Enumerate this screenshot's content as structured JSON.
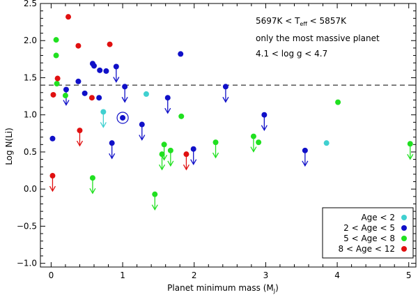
{
  "chart_data": {
    "type": "scatter",
    "xlabel_main": "Planet minimum mass (M",
    "xlabel_sub": "J",
    "xlabel_close": ")",
    "ylabel": "Log N(Li)",
    "xlim": [
      -0.15,
      5.1
    ],
    "ylim": [
      -1.05,
      2.5
    ],
    "xticks": [
      0,
      1,
      2,
      3,
      4,
      5
    ],
    "yticks": [
      -1.0,
      -0.5,
      0.0,
      0.5,
      1.0,
      1.5,
      2.0,
      2.5
    ],
    "ytick_labels": [
      "−1.0",
      "−0.5",
      "0.0",
      "0.5",
      "1.0",
      "1.5",
      "2.0",
      "2.5"
    ],
    "grid": false,
    "reference_line": {
      "y": 1.4,
      "style": "dashed"
    },
    "annotations": {
      "line1_a": "5697K < T",
      "line1_sub": "eff",
      "line1_b": " < 5857K",
      "line2": "only the most massive planet",
      "line3": "4.1 < log g < 4.7"
    },
    "legend_placement": "bottom-right",
    "highlighted_point": {
      "x": 1.0,
      "y": 0.96
    },
    "series": [
      {
        "name": "Age < 2",
        "color": "#40d0d0",
        "points": [
          {
            "x": 0.73,
            "y": 1.04,
            "upper_limit": true
          },
          {
            "x": 1.33,
            "y": 1.28,
            "upper_limit": false
          },
          {
            "x": 3.85,
            "y": 0.62,
            "upper_limit": false
          }
        ]
      },
      {
        "name": "2 < Age < 5",
        "color": "#1010c8",
        "points": [
          {
            "x": 0.02,
            "y": 0.68,
            "upper_limit": false
          },
          {
            "x": 0.21,
            "y": 1.34,
            "upper_limit": true
          },
          {
            "x": 0.38,
            "y": 1.45,
            "upper_limit": false
          },
          {
            "x": 0.47,
            "y": 1.29,
            "upper_limit": false
          },
          {
            "x": 0.58,
            "y": 1.69,
            "upper_limit": false
          },
          {
            "x": 0.6,
            "y": 1.66,
            "upper_limit": false
          },
          {
            "x": 0.67,
            "y": 1.23,
            "upper_limit": false
          },
          {
            "x": 0.68,
            "y": 1.6,
            "upper_limit": false
          },
          {
            "x": 0.77,
            "y": 1.59,
            "upper_limit": false
          },
          {
            "x": 0.85,
            "y": 0.62,
            "upper_limit": true
          },
          {
            "x": 0.91,
            "y": 1.65,
            "upper_limit": true
          },
          {
            "x": 1.0,
            "y": 0.96,
            "upper_limit": false
          },
          {
            "x": 1.03,
            "y": 1.38,
            "upper_limit": true
          },
          {
            "x": 1.27,
            "y": 0.87,
            "upper_limit": true
          },
          {
            "x": 1.63,
            "y": 1.23,
            "upper_limit": true
          },
          {
            "x": 1.81,
            "y": 1.82,
            "upper_limit": false
          },
          {
            "x": 1.99,
            "y": 0.54,
            "upper_limit": true
          },
          {
            "x": 2.44,
            "y": 1.38,
            "upper_limit": true
          },
          {
            "x": 2.98,
            "y": 1.0,
            "upper_limit": true
          },
          {
            "x": 3.55,
            "y": 0.52,
            "upper_limit": true
          }
        ]
      },
      {
        "name": "5 < Age < 8",
        "color": "#20e020",
        "points": [
          {
            "x": 0.07,
            "y": 2.01,
            "upper_limit": false
          },
          {
            "x": 0.07,
            "y": 1.8,
            "upper_limit": false
          },
          {
            "x": 0.08,
            "y": 1.42,
            "upper_limit": false
          },
          {
            "x": 0.2,
            "y": 1.26,
            "upper_limit": false
          },
          {
            "x": 0.58,
            "y": 0.15,
            "upper_limit": true
          },
          {
            "x": 1.45,
            "y": -0.07,
            "upper_limit": true
          },
          {
            "x": 1.55,
            "y": 0.47,
            "upper_limit": true
          },
          {
            "x": 1.58,
            "y": 0.6,
            "upper_limit": true
          },
          {
            "x": 1.67,
            "y": 0.52,
            "upper_limit": true
          },
          {
            "x": 1.82,
            "y": 0.98,
            "upper_limit": false
          },
          {
            "x": 2.3,
            "y": 0.63,
            "upper_limit": true
          },
          {
            "x": 2.83,
            "y": 0.71,
            "upper_limit": true
          },
          {
            "x": 2.9,
            "y": 0.63,
            "upper_limit": false
          },
          {
            "x": 4.01,
            "y": 1.17,
            "upper_limit": false
          },
          {
            "x": 5.02,
            "y": 0.61,
            "upper_limit": true
          }
        ]
      },
      {
        "name": "8 < Age < 12",
        "color": "#e01010",
        "points": [
          {
            "x": 0.02,
            "y": 0.18,
            "upper_limit": true
          },
          {
            "x": 0.03,
            "y": 1.27,
            "upper_limit": false
          },
          {
            "x": 0.09,
            "y": 1.49,
            "upper_limit": false
          },
          {
            "x": 0.24,
            "y": 2.32,
            "upper_limit": false
          },
          {
            "x": 0.38,
            "y": 1.93,
            "upper_limit": false
          },
          {
            "x": 0.4,
            "y": 0.79,
            "upper_limit": true
          },
          {
            "x": 0.57,
            "y": 1.23,
            "upper_limit": false
          },
          {
            "x": 0.82,
            "y": 1.95,
            "upper_limit": false
          },
          {
            "x": 1.89,
            "y": 0.47,
            "upper_limit": true
          }
        ]
      }
    ]
  }
}
